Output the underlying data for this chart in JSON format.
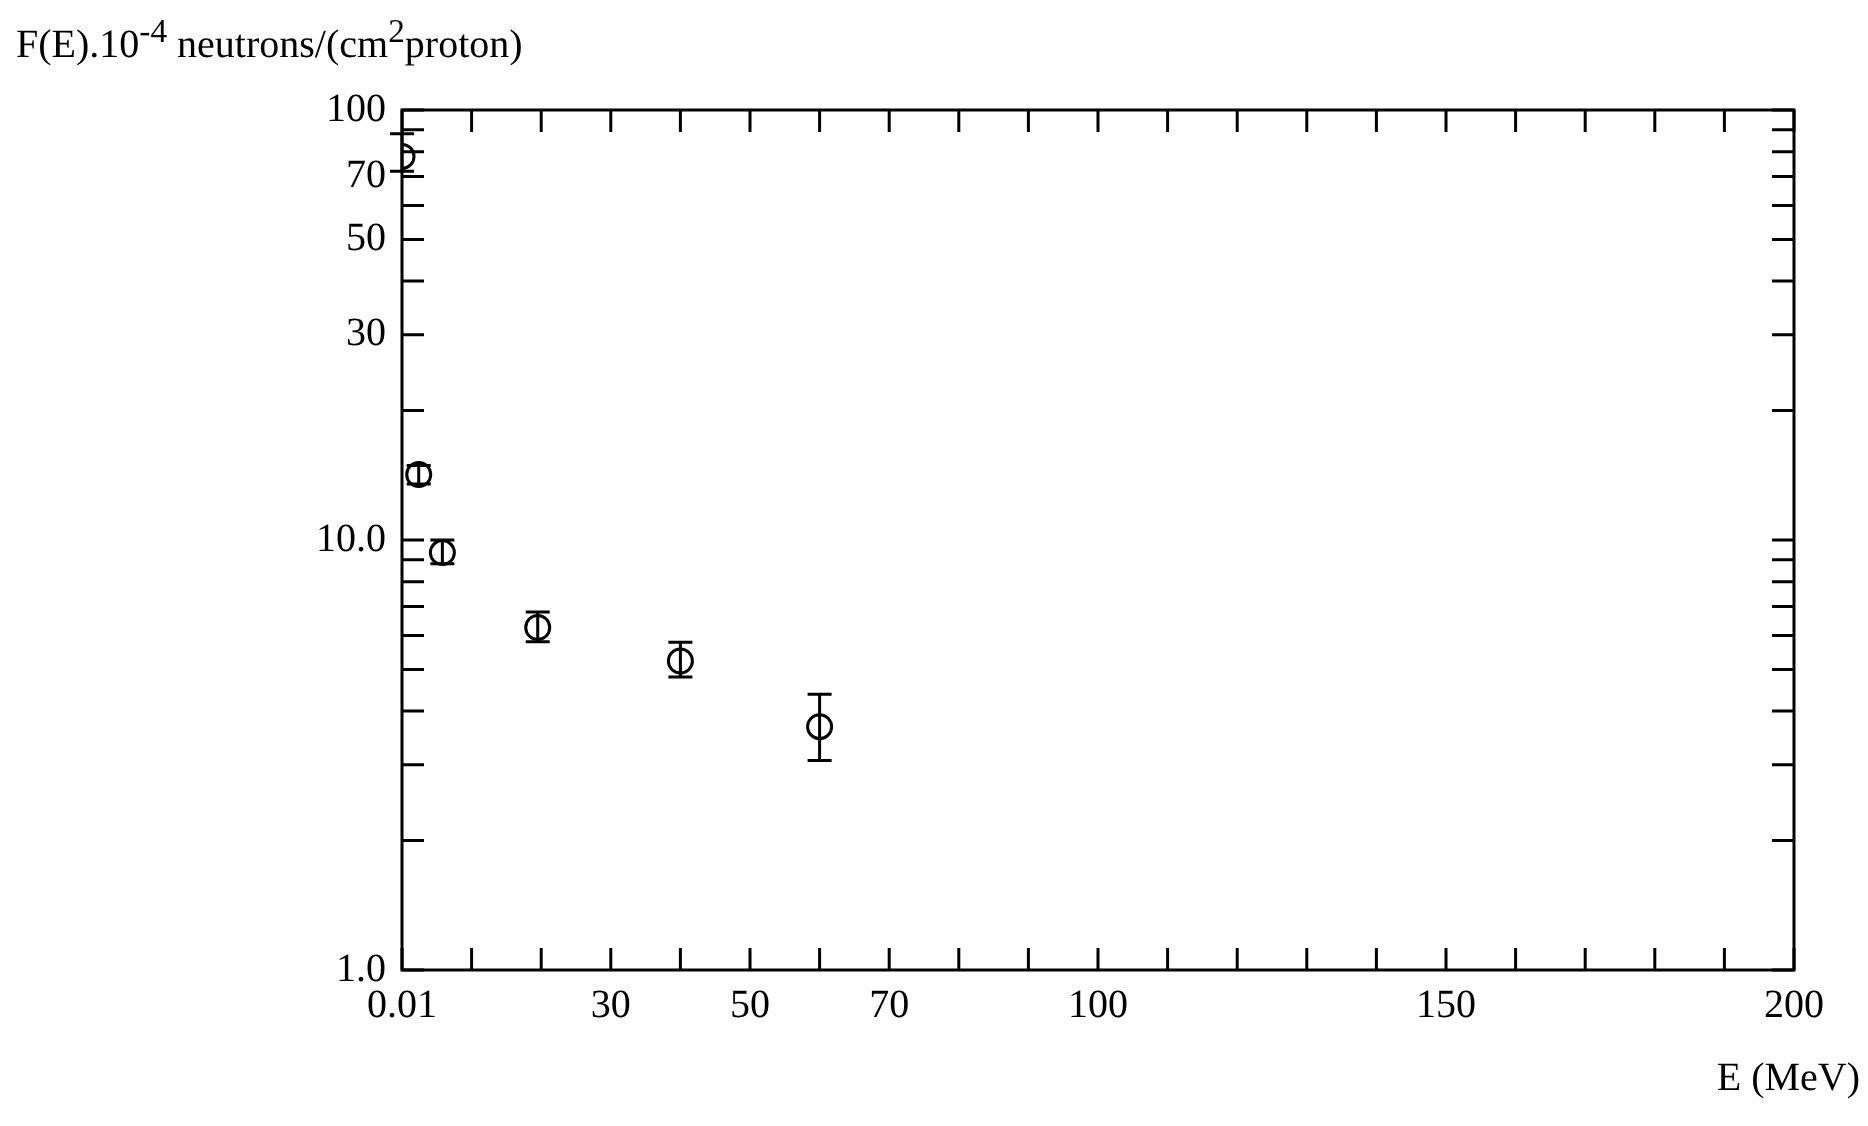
{
  "chart_data": {
    "type": "scatter",
    "ylabel": "F(E).10$^{-4}$ neutrons/(cm$^{2}$proton)",
    "xlabel": "E (MeV)",
    "x": [
      0,
      2.4,
      5.8,
      19.5,
      40,
      60
    ],
    "values": [
      78,
      14.2,
      9.35,
      6.26,
      5.23,
      3.68
    ],
    "errors": [
      [
        72,
        88
      ],
      [
        13.5,
        14.9
      ],
      [
        8.8,
        10.0
      ],
      [
        5.8,
        6.8
      ],
      [
        4.8,
        5.78
      ],
      [
        3.07,
        4.38
      ]
    ],
    "color": "#000000",
    "marker": "circle",
    "log": "y",
    "grid": false,
    "legend": false,
    "xlim": [
      0,
      200
    ],
    "xticks": [
      {
        "value": 0.01,
        "label": "0.01"
      },
      {
        "value": 10,
        "label": null
      },
      {
        "value": 20,
        "label": null
      },
      30,
      {
        "value": 40,
        "label": null
      },
      50,
      {
        "value": 60,
        "label": null
      },
      70,
      {
        "value": 80,
        "label": null
      },
      {
        "value": 90,
        "label": null
      },
      100,
      {
        "value": 110,
        "label": null
      },
      {
        "value": 120,
        "label": null
      },
      {
        "value": 130,
        "label": null
      },
      {
        "value": 140,
        "label": null
      },
      150,
      {
        "value": 160,
        "label": null
      },
      {
        "value": 170,
        "label": null
      },
      {
        "value": 180,
        "label": null
      },
      {
        "value": 190,
        "label": null
      },
      200
    ],
    "ylim": [
      1,
      100
    ],
    "yticks": [
      {
        "value": 1,
        "label": "1.0"
      },
      {
        "value": 2,
        "label": null
      },
      {
        "value": 3,
        "label": null
      },
      {
        "value": 4,
        "label": null
      },
      {
        "value": 5,
        "label": null
      },
      {
        "value": 6,
        "label": null
      },
      {
        "value": 7,
        "label": null
      },
      {
        "value": 8,
        "label": null
      },
      {
        "value": 9,
        "label": null
      },
      {
        "value": 10,
        "label": "10.0"
      },
      {
        "value": 20,
        "label": null
      },
      30,
      {
        "value": 40,
        "label": null
      },
      50,
      {
        "value": 60,
        "label": null
      },
      70,
      {
        "value": 80,
        "label": null
      },
      {
        "value": 90,
        "label": null
      },
      100
    ]
  }
}
